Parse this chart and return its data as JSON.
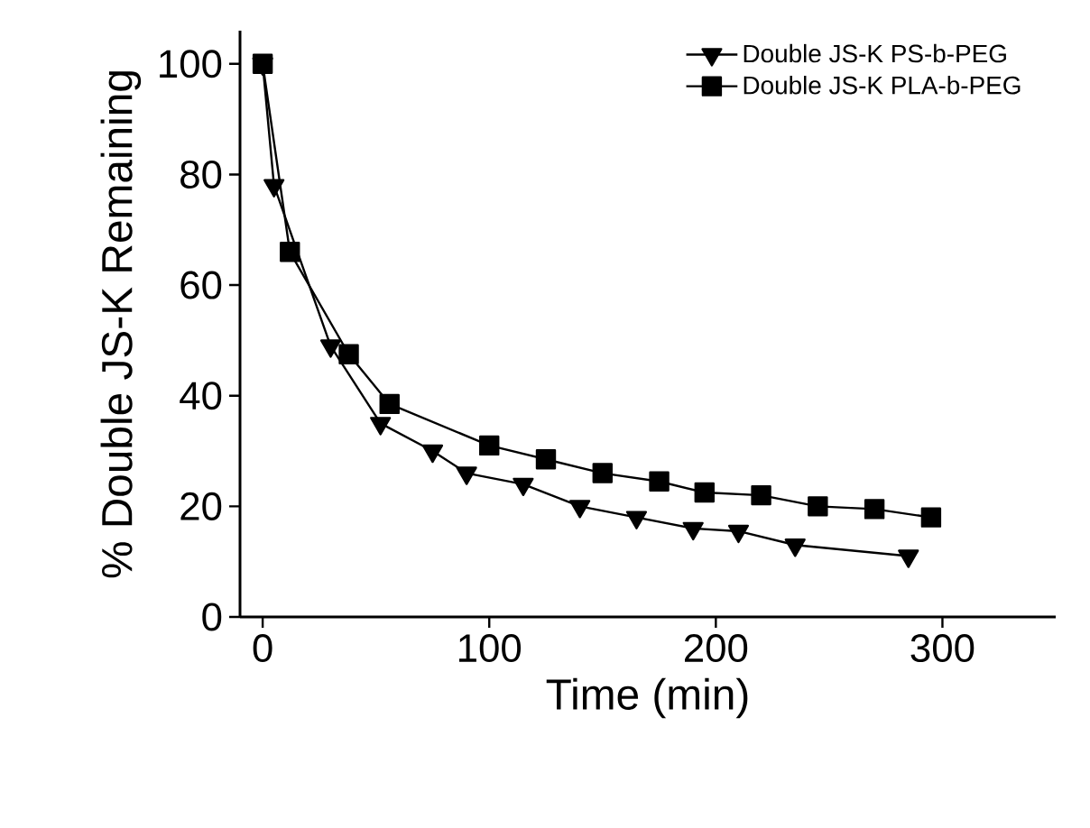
{
  "chart_data": {
    "type": "line",
    "xlabel": "Time (min)",
    "ylabel": "% Double JS-K Remaining",
    "xlim": [
      -10,
      350
    ],
    "ylim": [
      0,
      106
    ],
    "xticks": [
      0,
      100,
      200,
      300
    ],
    "yticks": [
      0,
      20,
      40,
      60,
      80,
      100
    ],
    "legend": "top right",
    "grid": false,
    "series": [
      {
        "name": "Double JS-K PS-b-PEG",
        "color": "#000000",
        "marker": "triangle",
        "x": [
          0,
          5,
          15,
          30,
          52,
          75,
          90,
          115,
          140,
          165,
          190,
          210,
          235,
          285
        ],
        "values": [
          100,
          78,
          null,
          49,
          35,
          30,
          26,
          24,
          20,
          18,
          16,
          15.5,
          13,
          11
        ]
      },
      {
        "name": "Double JS-K PLA-b-PEG",
        "color": "#000000",
        "marker": "square",
        "x": [
          0,
          12,
          38,
          56,
          100,
          125,
          150,
          175,
          195,
          220,
          245,
          270,
          295
        ],
        "values": [
          100,
          66,
          47.5,
          38.5,
          31,
          28.5,
          26,
          24.5,
          22.5,
          22,
          20,
          19.5,
          18
        ]
      }
    ]
  }
}
